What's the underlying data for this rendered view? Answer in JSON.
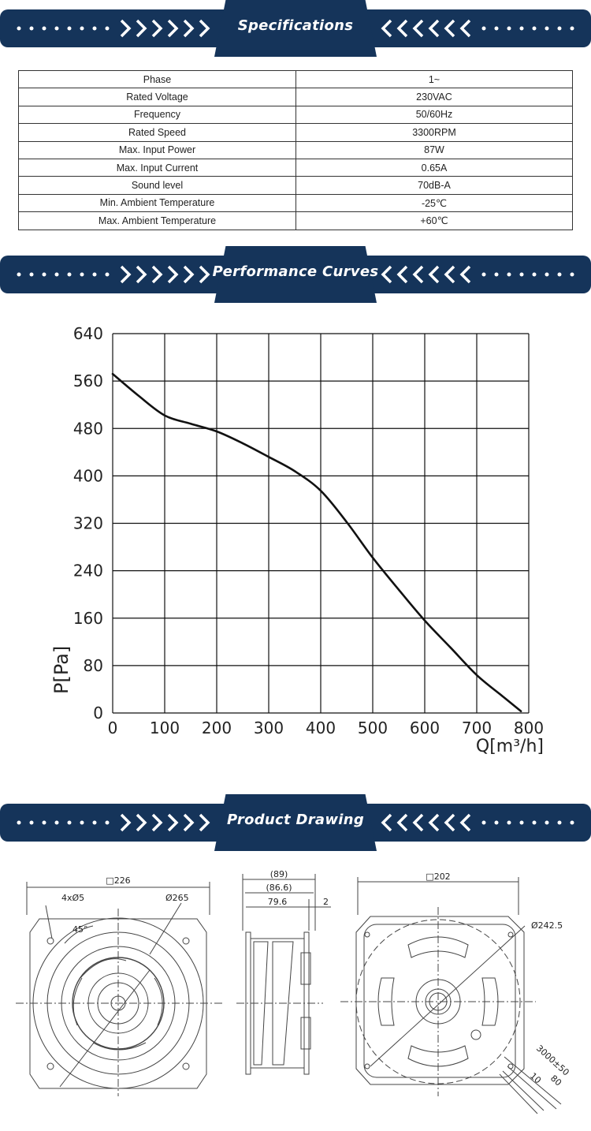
{
  "sections": {
    "specifications": "Specifications",
    "performance": "Performance Curves",
    "drawing": "Product Drawing"
  },
  "spec_rows": [
    {
      "label": "Phase",
      "value": "1~"
    },
    {
      "label": "Rated Voltage",
      "value": "230VAC"
    },
    {
      "label": "Frequency",
      "value": "50/60Hz"
    },
    {
      "label": "Rated Speed",
      "value": "3300RPM"
    },
    {
      "label": "Max. Input Power",
      "value": "87W"
    },
    {
      "label": "Max. Input Current",
      "value": "0.65A"
    },
    {
      "label": "Sound level",
      "value": "70dB-A"
    },
    {
      "label": "Min. Ambient Temperature",
      "value": "-25℃"
    },
    {
      "label": "Max. Ambient Temperature",
      "value": "+60℃"
    }
  ],
  "chart_data": {
    "type": "line",
    "xlabel": "Q[m³/h]",
    "ylabel": "P[Pa]",
    "xlim": [
      0,
      800
    ],
    "ylim": [
      0,
      640
    ],
    "x_ticks": [
      "0",
      "100",
      "200",
      "300",
      "400",
      "500",
      "600",
      "700",
      "800"
    ],
    "y_ticks": [
      "0",
      "80",
      "160",
      "240",
      "320",
      "400",
      "480",
      "560",
      "640"
    ],
    "grid": true,
    "series": [
      {
        "x": [
          0,
          50,
          100,
          150,
          200,
          250,
          300,
          350,
          400,
          450,
          500,
          550,
          600,
          650,
          700,
          750,
          785
        ],
        "y": [
          572,
          535,
          502,
          488,
          475,
          455,
          432,
          408,
          375,
          322,
          262,
          208,
          156,
          110,
          64,
          28,
          3
        ]
      }
    ]
  },
  "drawing_labels": {
    "front_width": "□226",
    "holes": "4xØ5",
    "diameter_outer": "Ø265",
    "angle": "45°",
    "side_overall": "(89)",
    "side_inner": "(86.6)",
    "side_depth": "79.6",
    "side_flange": "2",
    "rear_width": "□202",
    "rear_diameter": "Ø242.5",
    "cable_length": "3000±50",
    "cable_strip_10": "10",
    "cable_strip_80": "80"
  }
}
